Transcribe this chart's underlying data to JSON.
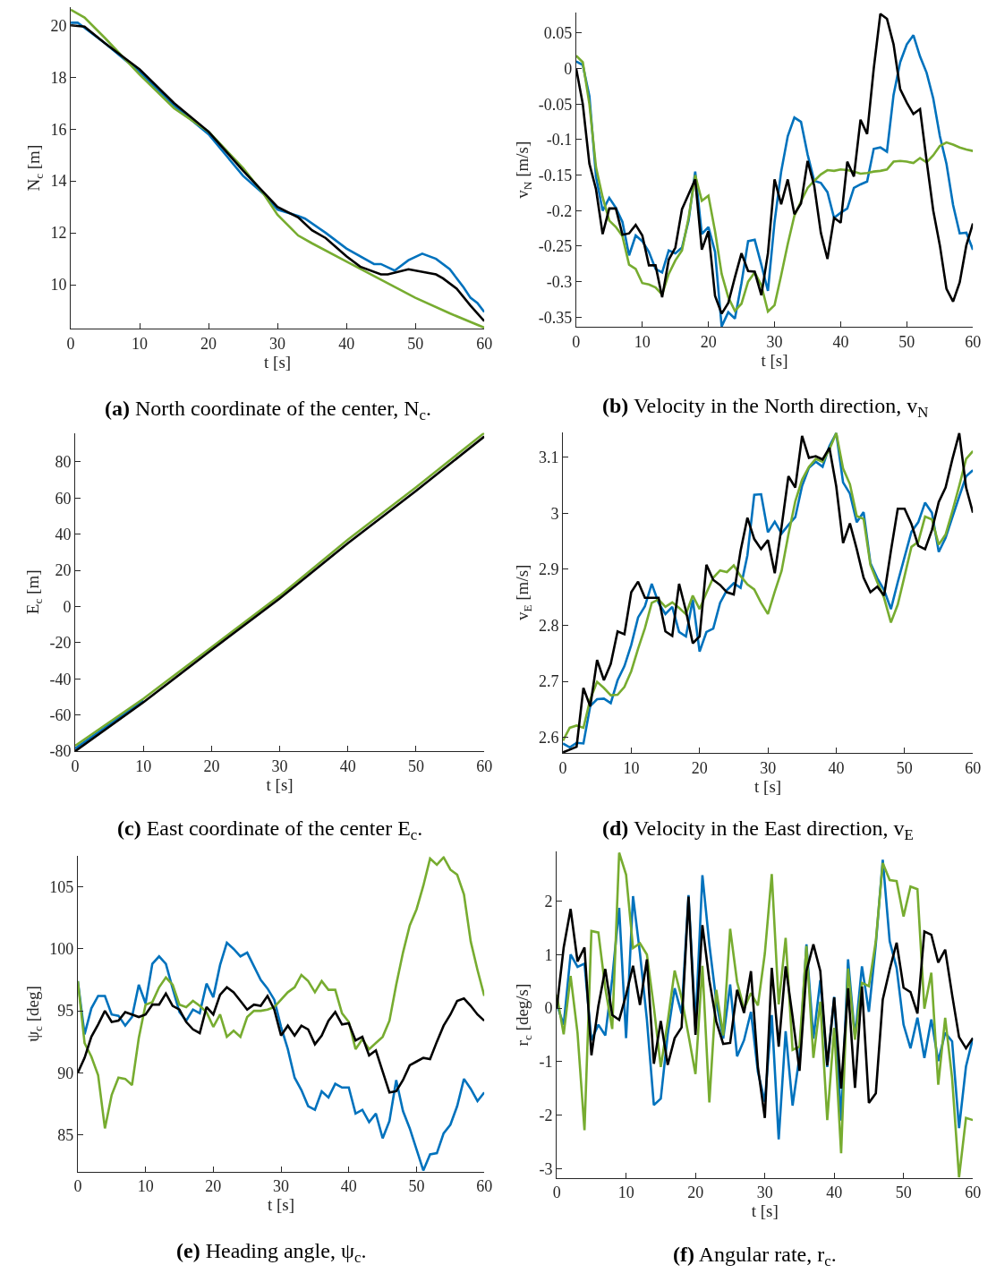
{
  "chart_data": [
    {
      "type": "line",
      "title": "(a) North coordinate of the center, N$_{c}$.",
      "xlabel": "t [s]",
      "ylabel": "N$_{c}$ [m]",
      "xlim": [
        0,
        60
      ],
      "xticks": [
        0,
        10,
        20,
        30,
        40,
        50,
        60
      ],
      "ylim": [
        8.3,
        20.7
      ],
      "yticks": [
        10,
        12,
        14,
        16,
        18,
        20
      ],
      "grid": false,
      "series": [
        {
          "color": "#0072bd",
          "x": [
            0,
            1,
            5,
            10,
            15,
            20,
            25,
            28,
            30,
            33,
            34,
            37,
            40,
            44,
            45,
            47,
            49,
            51,
            53,
            55,
            57,
            58,
            59,
            60
          ],
          "values": [
            20.1,
            20.1,
            19.3,
            18.2,
            16.9,
            15.8,
            14.2,
            13.5,
            12.9,
            12.65,
            12.55,
            12.0,
            11.4,
            10.8,
            10.8,
            10.55,
            10.95,
            11.2,
            11.0,
            10.6,
            9.9,
            9.5,
            9.3,
            8.95
          ]
        },
        {
          "color": "#77ac30",
          "x": [
            0,
            2,
            5,
            10,
            15,
            20,
            25,
            28,
            30,
            33,
            35,
            40,
            45,
            50,
            55,
            60
          ],
          "values": [
            20.6,
            20.3,
            19.5,
            18.1,
            16.8,
            15.9,
            14.5,
            13.5,
            12.7,
            11.9,
            11.6,
            10.9,
            10.2,
            9.5,
            8.9,
            8.35
          ]
        },
        {
          "color": "#000000",
          "x": [
            0,
            2,
            5,
            10,
            15,
            20,
            25,
            30,
            33,
            35,
            37,
            40,
            42,
            45,
            46,
            49,
            53,
            54,
            56,
            58,
            60
          ],
          "values": [
            20.0,
            19.95,
            19.3,
            18.3,
            17.0,
            15.9,
            14.4,
            13.0,
            12.6,
            12.1,
            11.8,
            11.1,
            10.7,
            10.4,
            10.4,
            10.6,
            10.4,
            10.25,
            9.85,
            9.2,
            8.6
          ]
        }
      ]
    },
    {
      "type": "line",
      "title": "(b) Velocity in the North direction, v$_{N}$",
      "xlabel": "t [s]",
      "ylabel": "v$_{N}$ [m/s]",
      "xlim": [
        0,
        60
      ],
      "xticks": [
        0,
        10,
        20,
        30,
        40,
        50,
        60
      ],
      "ylim": [
        -0.364,
        0.079
      ],
      "yticks": [
        -0.35,
        -0.3,
        -0.25,
        -0.2,
        -0.15,
        -0.1,
        -0.05,
        0,
        0.05
      ],
      "grid": false,
      "x": [
        0,
        1,
        2,
        3,
        4,
        5,
        6,
        7,
        8,
        9,
        10,
        11,
        12,
        13,
        14,
        15,
        16,
        17,
        18,
        19,
        20,
        21,
        22,
        23,
        24,
        25,
        26,
        27,
        28,
        29,
        30,
        31,
        32,
        33,
        34,
        35,
        36,
        37,
        38,
        39,
        40,
        41,
        42,
        43,
        44,
        45,
        46,
        47,
        48,
        49,
        50,
        51,
        52,
        53,
        54,
        55,
        56,
        57,
        58,
        59,
        60
      ],
      "series": [
        {
          "color": "#0072bd",
          "values": [
            0.01,
            0.005,
            -0.039,
            -0.152,
            -0.2,
            -0.182,
            -0.196,
            -0.216,
            -0.263,
            -0.235,
            -0.243,
            -0.258,
            -0.282,
            -0.287,
            -0.256,
            -0.26,
            -0.252,
            -0.214,
            -0.145,
            -0.233,
            -0.223,
            -0.258,
            -0.363,
            -0.343,
            -0.352,
            -0.302,
            -0.243,
            -0.241,
            -0.276,
            -0.313,
            -0.216,
            -0.145,
            -0.095,
            -0.069,
            -0.075,
            -0.121,
            -0.158,
            -0.161,
            -0.174,
            -0.21,
            -0.203,
            -0.197,
            -0.168,
            -0.163,
            -0.159,
            -0.113,
            -0.111,
            -0.117,
            -0.037,
            0.009,
            0.034,
            0.047,
            0.017,
            -0.006,
            -0.042,
            -0.095,
            -0.134,
            -0.192,
            -0.232,
            -0.231,
            -0.255
          ]
        },
        {
          "color": "#77ac30",
          "values": [
            0.018,
            0.009,
            -0.05,
            -0.139,
            -0.181,
            -0.214,
            -0.223,
            -0.236,
            -0.276,
            -0.282,
            -0.302,
            -0.304,
            -0.308,
            -0.318,
            -0.289,
            -0.27,
            -0.256,
            -0.21,
            -0.15,
            -0.186,
            -0.179,
            -0.229,
            -0.289,
            -0.322,
            -0.341,
            -0.331,
            -0.3,
            -0.287,
            -0.305,
            -0.342,
            -0.333,
            -0.291,
            -0.247,
            -0.207,
            -0.187,
            -0.168,
            -0.158,
            -0.149,
            -0.143,
            -0.144,
            -0.142,
            -0.143,
            -0.145,
            -0.148,
            -0.147,
            -0.145,
            -0.144,
            -0.142,
            -0.131,
            -0.13,
            -0.131,
            -0.133,
            -0.126,
            -0.132,
            -0.122,
            -0.109,
            -0.104,
            -0.107,
            -0.111,
            -0.114,
            -0.116
          ]
        },
        {
          "color": "#000000",
          "values": [
            0.0,
            -0.05,
            -0.134,
            -0.17,
            -0.233,
            -0.197,
            -0.197,
            -0.234,
            -0.232,
            -0.22,
            -0.235,
            -0.277,
            -0.277,
            -0.322,
            -0.269,
            -0.252,
            -0.198,
            -0.177,
            -0.156,
            -0.255,
            -0.229,
            -0.32,
            -0.345,
            -0.33,
            -0.294,
            -0.26,
            -0.285,
            -0.286,
            -0.319,
            -0.26,
            -0.156,
            -0.191,
            -0.156,
            -0.205,
            -0.19,
            -0.13,
            -0.165,
            -0.231,
            -0.268,
            -0.21,
            -0.217,
            -0.131,
            -0.152,
            -0.072,
            -0.092,
            0.0,
            0.077,
            0.07,
            0.034,
            -0.029,
            -0.048,
            -0.064,
            -0.057,
            -0.13,
            -0.2,
            -0.249,
            -0.31,
            -0.328,
            -0.301,
            -0.249,
            -0.218
          ]
        }
      ]
    },
    {
      "type": "line",
      "title": "(c) East coordinate of the center E$_{c}$.",
      "xlabel": "t [s]",
      "ylabel": "E$_{c}$ [m]",
      "xlim": [
        0,
        60
      ],
      "xticks": [
        0,
        10,
        20,
        30,
        40,
        50,
        60
      ],
      "ylim": [
        -80,
        96
      ],
      "yticks": [
        -80,
        -60,
        -40,
        -20,
        0,
        20,
        40,
        60,
        80
      ],
      "grid": false,
      "x": [
        0,
        10,
        20,
        30,
        40,
        50,
        60
      ],
      "series": [
        {
          "color": "#0072bd",
          "values": [
            -78.5,
            -52,
            null,
            null,
            null,
            null,
            null
          ]
        },
        {
          "color": "#77ac30",
          "values": [
            -77,
            -51,
            -22.5,
            6,
            37,
            66,
            96
          ]
        },
        {
          "color": "#000000",
          "values": [
            -80,
            -53,
            -24,
            4.5,
            35,
            64,
            94
          ]
        }
      ]
    },
    {
      "type": "line",
      "title": "(d) Velocity in the East direction, v$_{E}$",
      "xlabel": "t [s]",
      "ylabel": "v$_{E}$ [m/s]",
      "xlim": [
        0,
        60
      ],
      "xticks": [
        0,
        10,
        20,
        30,
        40,
        50,
        60
      ],
      "ylim": [
        2.572,
        3.145
      ],
      "yticks": [
        2.6,
        2.7,
        2.8,
        2.9,
        3,
        3.1
      ],
      "grid": false,
      "x": [
        0,
        1,
        2,
        3,
        4,
        5,
        6,
        7,
        8,
        9,
        10,
        11,
        12,
        13,
        14,
        15,
        16,
        17,
        18,
        19,
        20,
        21,
        22,
        23,
        24,
        25,
        26,
        27,
        28,
        29,
        30,
        31,
        32,
        33,
        34,
        35,
        36,
        37,
        38,
        39,
        40,
        41,
        42,
        43,
        44,
        45,
        46,
        47,
        48,
        49,
        50,
        51,
        52,
        53,
        54,
        55,
        56,
        57,
        58,
        59,
        60
      ],
      "series": [
        {
          "color": "#0072bd",
          "values": [
            2.589,
            2.582,
            2.59,
            2.589,
            2.656,
            2.668,
            2.669,
            2.661,
            2.702,
            2.727,
            2.765,
            2.814,
            2.834,
            2.874,
            2.84,
            2.82,
            2.833,
            2.788,
            2.78,
            2.846,
            2.753,
            2.788,
            2.794,
            2.84,
            2.863,
            2.875,
            2.867,
            2.925,
            3.033,
            3.034,
            2.966,
            2.985,
            2.964,
            2.979,
            2.993,
            3.049,
            3.081,
            3.092,
            3.083,
            3.12,
            3.143,
            3.055,
            3.035,
            2.984,
            3.002,
            2.911,
            2.884,
            2.863,
            2.829,
            2.877,
            2.922,
            2.967,
            2.984,
            3.019,
            3.001,
            2.931,
            2.956,
            2.993,
            3.03,
            3.066,
            3.077
          ]
        },
        {
          "color": "#77ac30",
          "values": [
            2.594,
            2.617,
            2.621,
            2.617,
            2.668,
            2.699,
            2.688,
            2.675,
            2.676,
            2.69,
            2.718,
            2.758,
            2.795,
            2.84,
            2.846,
            2.833,
            2.841,
            2.831,
            2.82,
            2.853,
            2.829,
            2.858,
            2.885,
            2.898,
            2.895,
            2.907,
            2.888,
            2.873,
            2.864,
            2.84,
            2.82,
            2.86,
            2.897,
            2.962,
            3.021,
            3.06,
            3.083,
            3.097,
            3.092,
            3.114,
            3.143,
            3.08,
            3.052,
            2.995,
            2.99,
            2.908,
            2.877,
            2.849,
            2.805,
            2.837,
            2.888,
            2.94,
            2.949,
            2.994,
            2.989,
            2.944,
            2.962,
            3.004,
            3.049,
            3.097,
            3.111
          ]
        },
        {
          "color": "#000000",
          "values": [
            2.573,
            2.578,
            2.583,
            2.688,
            2.655,
            2.738,
            2.702,
            2.731,
            2.789,
            2.784,
            2.859,
            2.878,
            2.849,
            2.849,
            2.849,
            2.789,
            2.781,
            2.874,
            2.826,
            2.768,
            2.78,
            2.908,
            2.881,
            2.872,
            2.859,
            2.855,
            2.933,
            2.992,
            2.954,
            2.936,
            2.952,
            2.893,
            2.976,
            3.066,
            3.046,
            3.138,
            3.099,
            3.102,
            3.096,
            3.117,
            3.048,
            2.947,
            2.982,
            2.936,
            2.885,
            2.859,
            2.869,
            2.853,
            2.933,
            3.008,
            3.008,
            2.981,
            2.942,
            2.936,
            2.97,
            3.02,
            3.046,
            3.097,
            3.143,
            3.046,
            3.001
          ]
        }
      ]
    },
    {
      "type": "line",
      "title": "(e) Heading angle, ψ$_{c}$.",
      "xlabel": "t [s]",
      "ylabel": "ψ$_{c}$ [deg]",
      "xlim": [
        0,
        60
      ],
      "xticks": [
        0,
        10,
        20,
        30,
        40,
        50,
        60
      ],
      "ylim": [
        82,
        107.5
      ],
      "yticks": [
        85,
        90,
        95,
        100,
        105
      ],
      "grid": false,
      "x": [
        0,
        1,
        2,
        3,
        4,
        5,
        6,
        7,
        8,
        9,
        10,
        11,
        12,
        13,
        14,
        15,
        16,
        17,
        18,
        19,
        20,
        21,
        22,
        23,
        24,
        25,
        26,
        27,
        28,
        29,
        30,
        31,
        32,
        33,
        34,
        35,
        36,
        37,
        38,
        39,
        40,
        41,
        42,
        43,
        44,
        45,
        46,
        47,
        48,
        49,
        50,
        51,
        52,
        53,
        54,
        55,
        56,
        57,
        58,
        59,
        60
      ],
      "series": [
        {
          "color": "#0072bd",
          "values": [
            97.4,
            93.1,
            95.2,
            96.2,
            96.2,
            94.7,
            94.6,
            93.8,
            94.5,
            97.1,
            95.6,
            98.8,
            99.4,
            98.8,
            96.8,
            94.9,
            94.2,
            95.1,
            94.8,
            97.2,
            96.1,
            98.7,
            100.5,
            100.0,
            99.4,
            99.7,
            98.6,
            97.5,
            96.8,
            95.9,
            93.7,
            91.9,
            89.6,
            88.6,
            87.3,
            87.0,
            88.5,
            88.0,
            89.1,
            88.8,
            88.8,
            86.7,
            87.0,
            86.0,
            86.7,
            84.7,
            86.1,
            89.4,
            86.9,
            85.5,
            83.8,
            82.1,
            83.4,
            83.5,
            85.1,
            85.8,
            87.3,
            89.5,
            88.7,
            87.7,
            88.4
          ]
        },
        {
          "color": "#77ac30",
          "values": [
            97.4,
            92.4,
            91.3,
            89.8,
            85.5,
            88.2,
            89.6,
            89.5,
            89.0,
            92.8,
            95.5,
            95.7,
            96.9,
            97.7,
            97.1,
            95.5,
            95.3,
            95.8,
            95.4,
            94.9,
            93.7,
            94.7,
            92.9,
            93.4,
            92.9,
            94.5,
            95.0,
            95.0,
            95.1,
            95.3,
            95.9,
            96.5,
            96.9,
            97.9,
            97.4,
            96.5,
            97.4,
            96.7,
            96.7,
            94.8,
            94.1,
            91.9,
            92.7,
            91.9,
            92.4,
            92.9,
            94.2,
            97.1,
            99.7,
            101.9,
            103.2,
            105.1,
            107.3,
            106.8,
            107.4,
            106.4,
            106.0,
            104.4,
            100.6,
            98.3,
            96.2
          ]
        },
        {
          "color": "#000000",
          "values": [
            90.0,
            91.2,
            92.9,
            93.9,
            95.0,
            94.1,
            94.2,
            94.9,
            94.7,
            94.5,
            94.7,
            95.5,
            95.5,
            96.4,
            95.4,
            95.1,
            94.1,
            93.5,
            93.2,
            95.3,
            94.7,
            96.3,
            96.9,
            96.5,
            95.8,
            95.1,
            95.5,
            95.4,
            96.2,
            95.1,
            93.0,
            93.8,
            93.0,
            93.8,
            93.5,
            92.3,
            93.0,
            94.2,
            94.9,
            93.9,
            94.0,
            92.6,
            92.9,
            91.4,
            91.8,
            90.1,
            88.4,
            88.5,
            89.4,
            90.6,
            90.9,
            91.2,
            91.1,
            92.5,
            93.8,
            94.7,
            95.8,
            96.0,
            95.4,
            94.7,
            94.2
          ]
        }
      ]
    },
    {
      "type": "line",
      "title": "(f) Angular rate, r$_{c}$.",
      "xlabel": "t [s]",
      "ylabel": "r$_{c}$ [deg/s]",
      "xlim": [
        0,
        60
      ],
      "xticks": [
        0,
        10,
        20,
        30,
        40,
        50,
        60
      ],
      "ylim": [
        -3.17,
        2.92
      ],
      "yticks": [
        -3,
        -2,
        -1,
        0,
        1,
        2
      ],
      "grid": false,
      "x": [
        0,
        1,
        2,
        3,
        4,
        5,
        6,
        7,
        8,
        9,
        10,
        11,
        12,
        13,
        14,
        15,
        16,
        17,
        18,
        19,
        20,
        21,
        22,
        23,
        24,
        25,
        26,
        27,
        28,
        29,
        30,
        31,
        32,
        33,
        34,
        35,
        36,
        37,
        38,
        39,
        40,
        41,
        42,
        43,
        44,
        45,
        46,
        47,
        48,
        49,
        50,
        51,
        52,
        53,
        54,
        55,
        56,
        57,
        58,
        59,
        60
      ],
      "series": [
        {
          "color": "#0072bd",
          "values": [
            0.07,
            -0.31,
            1.0,
            0.77,
            0.83,
            -0.6,
            -0.31,
            -0.51,
            0.55,
            1.87,
            -0.56,
            2.09,
            1.02,
            -0.22,
            -1.81,
            -1.69,
            -0.49,
            0.37,
            -0.1,
            2.11,
            -0.34,
            2.48,
            1.19,
            0.13,
            -0.57,
            0.44,
            -0.9,
            -0.6,
            -0.07,
            -1.19,
            -1.75,
            -0.13,
            -2.45,
            -0.43,
            -1.82,
            -0.9,
            1.19,
            -0.57,
            0.52,
            -1.1,
            0.21,
            -2.1,
            0.91,
            -0.54,
            0.78,
            -0.07,
            1.19,
            2.77,
            1.25,
            0.75,
            -0.31,
            -0.75,
            -0.18,
            -0.93,
            -0.21,
            -0.99,
            -0.46,
            -0.62,
            -2.24,
            -1.09,
            -0.56
          ]
        },
        {
          "color": "#77ac30",
          "values": [
            0.25,
            -0.49,
            0.6,
            -0.47,
            -2.28,
            1.44,
            1.41,
            0.37,
            -0.39,
            2.9,
            2.49,
            1.12,
            1.21,
            1.0,
            0.02,
            -1.1,
            -0.25,
            0.7,
            0.19,
            -0.51,
            -1.23,
            0.79,
            -1.76,
            0.34,
            -0.51,
            1.48,
            0.49,
            -0.01,
            0.28,
            0.05,
            1.02,
            2.5,
            0.07,
            1.31,
            -0.78,
            -0.72,
            1.16,
            -0.93,
            0.12,
            -2.09,
            -0.37,
            -2.71,
            0.74,
            -0.59,
            0.47,
            0.41,
            1.25,
            2.71,
            2.39,
            2.37,
            1.71,
            2.27,
            2.22,
            -0.01,
            0.66,
            -1.43,
            -0.18,
            -1.31,
            -3.16,
            -2.05,
            -2.09
          ]
        },
        {
          "color": "#000000",
          "values": [
            0.0,
            1.13,
            1.85,
            0.87,
            1.13,
            -0.88,
            0.04,
            0.73,
            -0.13,
            -0.22,
            0.25,
            0.79,
            0.06,
            0.91,
            -1.04,
            -0.24,
            -1.06,
            -0.56,
            -0.36,
            2.08,
            -0.5,
            1.55,
            0.52,
            -0.25,
            -0.67,
            -0.65,
            0.34,
            -0.09,
            0.69,
            -1.1,
            -2.05,
            0.75,
            -0.72,
            0.78,
            -0.16,
            -1.17,
            0.69,
            1.19,
            0.69,
            -1.07,
            0.2,
            -1.5,
            0.37,
            -1.49,
            0.4,
            -1.77,
            -1.59,
            0.16,
            0.72,
            1.22,
            0.38,
            0.3,
            -0.1,
            1.43,
            1.37,
            0.85,
            1.09,
            0.25,
            -0.54,
            -0.75,
            -0.56
          ]
        }
      ]
    }
  ]
}
